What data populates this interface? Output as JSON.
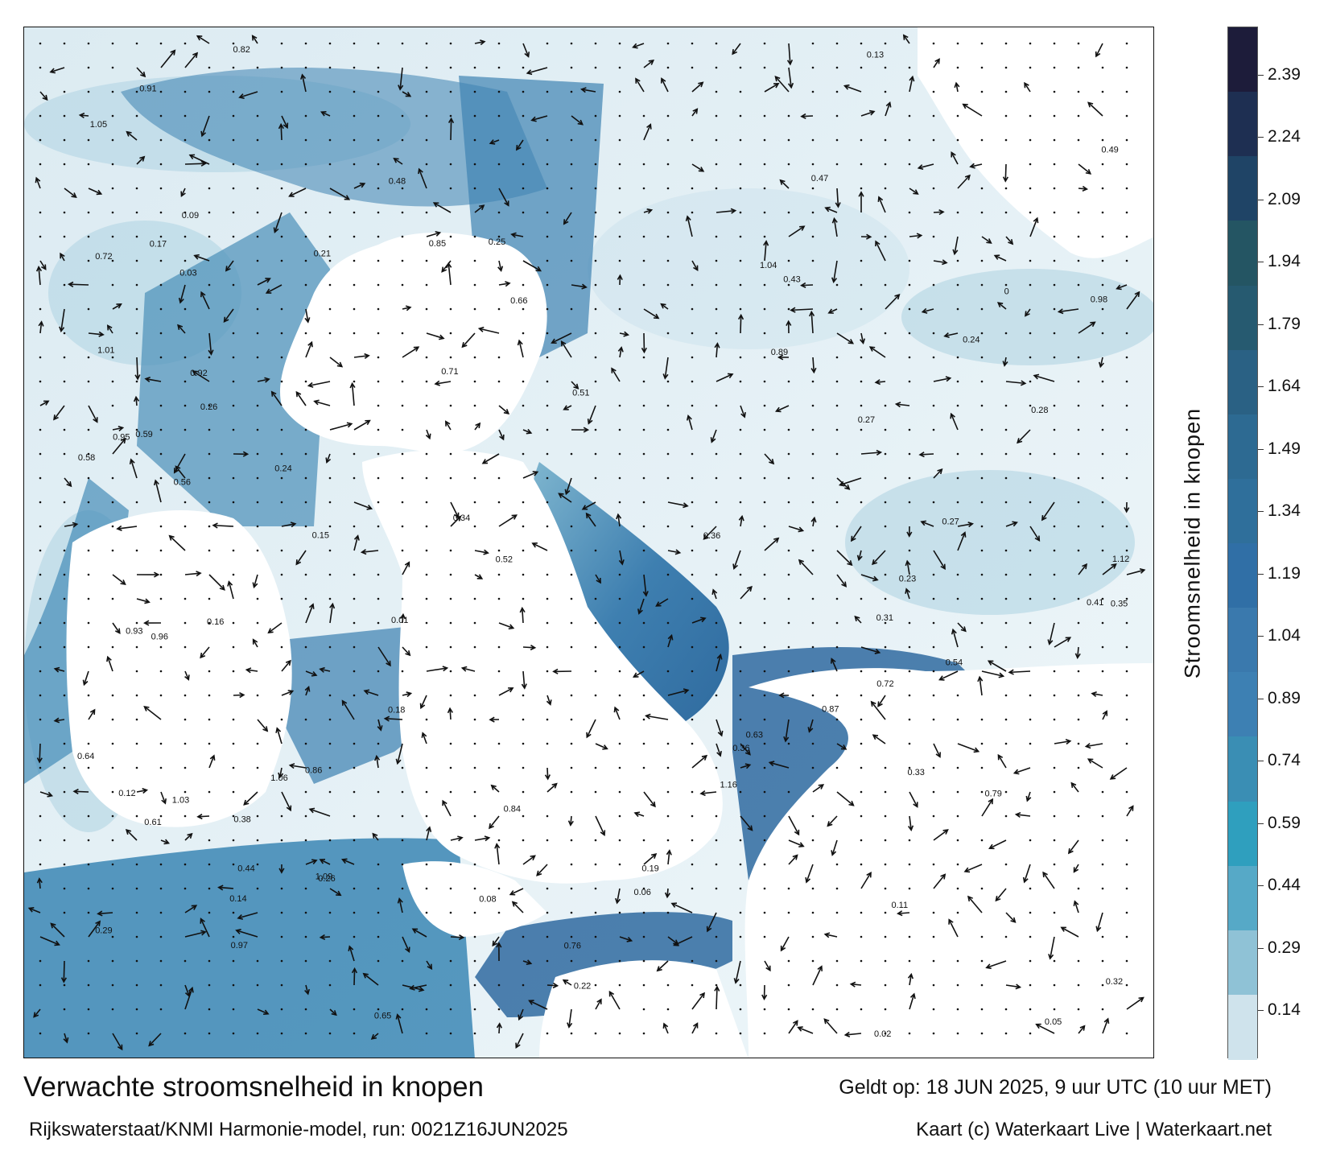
{
  "map": {
    "title": "Verwachte stroomsnelheid in knopen",
    "valid_time": "Geldt op: 18 JUN 2025, 9 uur UTC (10 uur MET)",
    "model_run": "Rijkswaterstaat/KNMI Harmonie-model, run: 0021Z16JUN2025",
    "credit": "Kaart (c) Waterkaart Live | Waterkaart.net",
    "colors": {
      "land": "#ffffff",
      "sea_low": "#e6f1f6",
      "sea_high": "#1c3f73",
      "arrow": "#111111",
      "border": "#111111"
    }
  },
  "colorbar": {
    "label": "Stroomsnelheid in knopen",
    "ticks": [
      "2.39",
      "2.24",
      "2.09",
      "1.94",
      "1.79",
      "1.64",
      "1.49",
      "1.34",
      "1.19",
      "1.04",
      "0.89",
      "0.74",
      "0.59",
      "0.44",
      "0.29",
      "0.14"
    ],
    "colors": [
      "#1d1c3a",
      "#1e2f52",
      "#1f4466",
      "#245563",
      "#265a70",
      "#2a6184",
      "#2d6a92",
      "#2f6f9b",
      "#306fa6",
      "#3a79ad",
      "#3d80b3",
      "#3a8eb4",
      "#2f9fbe",
      "#56a9c7",
      "#8fc2d6",
      "#cfe3ec"
    ]
  },
  "speed_labels": [
    {
      "t": "0.27"
    },
    {
      "t": "0.26"
    },
    {
      "t": "0.25"
    },
    {
      "t": "0.33"
    },
    {
      "t": "0.31"
    },
    {
      "t": "0.24"
    },
    {
      "t": "0.17"
    },
    {
      "t": "0.38"
    },
    {
      "t": "0.44"
    },
    {
      "t": "0.72"
    },
    {
      "t": "0.89"
    },
    {
      "t": "0.47"
    },
    {
      "t": "0.49"
    },
    {
      "t": "0.36"
    },
    {
      "t": "0.23"
    },
    {
      "t": "0.21"
    },
    {
      "t": "0.18"
    },
    {
      "t": "0.27"
    },
    {
      "t": "0.14"
    },
    {
      "t": "0.09"
    },
    {
      "t": "0.05"
    },
    {
      "t": "0.59"
    },
    {
      "t": "0.71"
    },
    {
      "t": "0.63"
    },
    {
      "t": "0.48"
    },
    {
      "t": "0.34"
    },
    {
      "t": "0.26"
    },
    {
      "t": "0.24"
    },
    {
      "t": "0.22"
    },
    {
      "t": "0.12"
    },
    {
      "t": "0.96"
    },
    {
      "t": "1.05"
    },
    {
      "t": "0.84"
    },
    {
      "t": "0.65"
    },
    {
      "t": "0.85"
    },
    {
      "t": "1.04"
    },
    {
      "t": "0.97"
    },
    {
      "t": "0.72"
    },
    {
      "t": "0.56"
    },
    {
      "t": "0.64"
    },
    {
      "t": "1.16"
    },
    {
      "t": "1.03"
    },
    {
      "t": "1.06"
    },
    {
      "t": "1.09"
    },
    {
      "t": "1.12"
    },
    {
      "t": "1.01"
    },
    {
      "t": "0.98"
    },
    {
      "t": "0.91"
    },
    {
      "t": "0.79"
    },
    {
      "t": "0.92"
    },
    {
      "t": "0.87"
    },
    {
      "t": "0.58"
    },
    {
      "t": "0.95"
    },
    {
      "t": "0.86"
    },
    {
      "t": "0.54"
    },
    {
      "t": "0.61"
    },
    {
      "t": "0.41"
    },
    {
      "t": "0.36"
    },
    {
      "t": "0.19"
    },
    {
      "t": "0.15"
    },
    {
      "t": "0.13"
    },
    {
      "t": "0.11"
    },
    {
      "t": "0.08"
    },
    {
      "t": "0.06"
    },
    {
      "t": "0.03"
    },
    {
      "t": "0.02"
    },
    {
      "t": "0.01"
    },
    {
      "t": "0"
    },
    {
      "t": "0.43"
    },
    {
      "t": "0.52"
    },
    {
      "t": "0.66"
    },
    {
      "t": "0.76"
    },
    {
      "t": "0.82"
    },
    {
      "t": "0.93"
    },
    {
      "t": "0.51"
    },
    {
      "t": "0.28"
    },
    {
      "t": "0.16"
    },
    {
      "t": "0.29"
    },
    {
      "t": "0.32"
    },
    {
      "t": "0.35"
    }
  ]
}
